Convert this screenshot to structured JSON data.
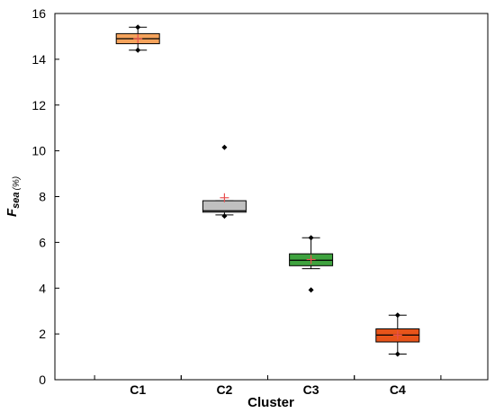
{
  "chart_data": {
    "type": "box",
    "xlabel": "Cluster",
    "ylabel": {
      "main": "F",
      "subscript": "sea",
      "unit": "(%)"
    },
    "ylim": [
      0,
      16
    ],
    "yticks": [
      0,
      2,
      4,
      6,
      8,
      10,
      12,
      14,
      16
    ],
    "grid": false,
    "categories": [
      "C1",
      "C2",
      "C3",
      "C4"
    ],
    "boxes": [
      {
        "category": "C1",
        "color": "#F5A35C",
        "whisker_low": 14.4,
        "q1": 14.68,
        "median": 14.9,
        "q3": 15.12,
        "whisker_high": 15.4,
        "mean": 14.9,
        "outliers": [],
        "min_marker": 14.4,
        "max_marker": 15.4
      },
      {
        "category": "C2",
        "color": "#C0C0C0",
        "whisker_low": 7.2,
        "q1": 7.32,
        "median": 7.38,
        "q3": 7.82,
        "whisker_high": 7.82,
        "mean": 7.95,
        "outliers": [
          10.15
        ],
        "min_marker": 7.15,
        "max_marker": null
      },
      {
        "category": "C3",
        "color": "#3FA33F",
        "whisker_low": 4.85,
        "q1": 4.98,
        "median": 5.22,
        "q3": 5.5,
        "whisker_high": 6.2,
        "mean": 5.25,
        "outliers": [
          3.92
        ],
        "min_marker": null,
        "max_marker": 6.2
      },
      {
        "category": "C4",
        "color": "#E8541A",
        "whisker_low": 1.12,
        "q1": 1.65,
        "median": 1.95,
        "q3": 2.22,
        "whisker_high": 2.82,
        "mean": 1.95,
        "outliers": [],
        "min_marker": 1.12,
        "max_marker": 2.82
      }
    ]
  }
}
